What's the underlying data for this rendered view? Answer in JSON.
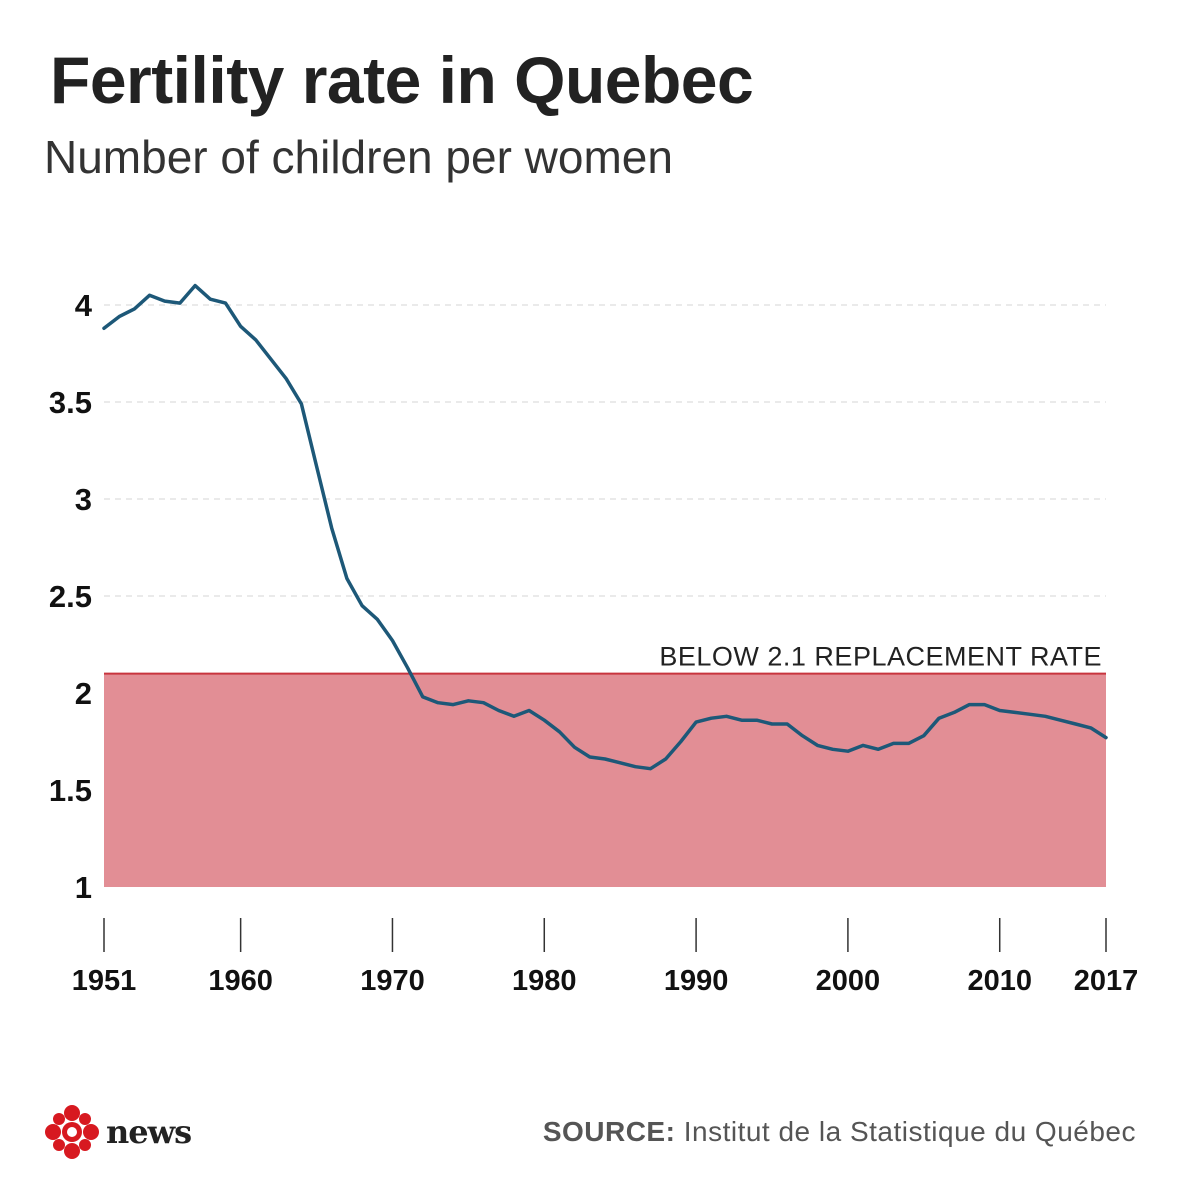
{
  "header": {
    "title": "Fertility rate in Quebec",
    "subtitle": "Number of children per women"
  },
  "footer": {
    "source_label": "SOURCE:",
    "source_text": "Institut de la Statistique du Québec",
    "logo_text": "news"
  },
  "colors": {
    "line": "#1d5878",
    "band_fill": "#e28e95",
    "band_line": "#c8343e",
    "grid": "#dddddd",
    "logo_red": "#d71920"
  },
  "chart_data": {
    "type": "line",
    "title": "Fertility rate in Quebec",
    "subtitle": "Number of children per women",
    "xlabel": "",
    "ylabel": "",
    "xlim": [
      1951,
      2017
    ],
    "ylim": [
      1,
      4.1
    ],
    "y_ticks": [
      4,
      3.5,
      3,
      2.5,
      2,
      1.5,
      1
    ],
    "y_tick_labels": [
      "4",
      "3.5",
      "3",
      "2.5",
      "2",
      "1.5",
      "1"
    ],
    "x_ticks": [
      1951,
      1960,
      1970,
      1980,
      1990,
      2000,
      2010,
      2017
    ],
    "x_tick_labels": [
      "1951",
      "1960",
      "1970",
      "1980",
      "1990",
      "2000",
      "2010",
      "2017"
    ],
    "grid": "horizontal dashed",
    "annotation": {
      "text": "BELOW 2.1 REPLACEMENT RATE",
      "threshold": 2.1,
      "band_from": 1
    },
    "series": [
      {
        "x": [
          1951,
          1952,
          1953,
          1954,
          1955,
          1956,
          1957,
          1958,
          1959,
          1960,
          1961,
          1962,
          1963,
          1964,
          1965,
          1966,
          1967,
          1968,
          1969,
          1970,
          1971,
          1972,
          1973,
          1974,
          1975,
          1976,
          1977,
          1978,
          1979,
          1980,
          1981,
          1982,
          1983,
          1984,
          1985,
          1986,
          1987,
          1988,
          1989,
          1990,
          1991,
          1992,
          1993,
          1994,
          1995,
          1996,
          1997,
          1998,
          1999,
          2000,
          2001,
          2002,
          2003,
          2004,
          2005,
          2006,
          2007,
          2008,
          2009,
          2010,
          2011,
          2012,
          2013,
          2014,
          2015,
          2016,
          2017
        ],
        "values": [
          3.88,
          3.94,
          3.98,
          4.05,
          4.02,
          4.01,
          4.1,
          4.03,
          4.01,
          3.89,
          3.82,
          3.72,
          3.62,
          3.49,
          3.17,
          2.85,
          2.59,
          2.45,
          2.38,
          2.27,
          2.13,
          1.98,
          1.95,
          1.94,
          1.96,
          1.95,
          1.91,
          1.88,
          1.91,
          1.86,
          1.8,
          1.72,
          1.67,
          1.66,
          1.64,
          1.62,
          1.61,
          1.66,
          1.75,
          1.85,
          1.87,
          1.88,
          1.86,
          1.86,
          1.84,
          1.84,
          1.78,
          1.73,
          1.71,
          1.7,
          1.73,
          1.71,
          1.74,
          1.74,
          1.78,
          1.87,
          1.9,
          1.94,
          1.94,
          1.91,
          1.9,
          1.89,
          1.88,
          1.86,
          1.84,
          1.82,
          1.77
        ]
      }
    ]
  }
}
